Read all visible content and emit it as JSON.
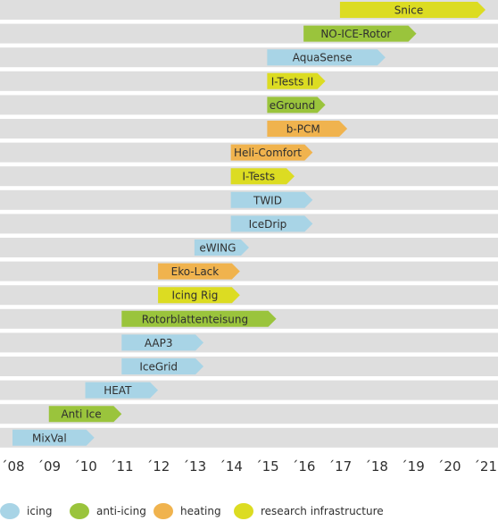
{
  "chart_data": {
    "type": "bar",
    "subtype": "gantt-timeline",
    "x_ticks": [
      "´08",
      "´09",
      "´10",
      "´11",
      "´12",
      "´13",
      "´14",
      "´15",
      "´16",
      "´17",
      "´18",
      "´19",
      "´20",
      "´21"
    ],
    "xlim": [
      2008,
      2021
    ],
    "grid": "horizontal row bands",
    "legend_position": "bottom",
    "categories_colors": {
      "icing": "#a8d4e6",
      "anti-icing": "#9ac43c",
      "heating": "#f0b34e",
      "research infrastructure": "#dcdc22"
    },
    "legend": [
      "icing",
      "anti-icing",
      "heating",
      "research infrastructure"
    ],
    "projects": [
      {
        "name": "Snice",
        "category": "research infrastructure",
        "start": 2017.0,
        "end": 2021.0
      },
      {
        "name": "NO-ICE-Rotor",
        "category": "anti-icing",
        "start": 2016.0,
        "end": 2019.1
      },
      {
        "name": "AquaSense",
        "category": "icing",
        "start": 2015.0,
        "end": 2018.25
      },
      {
        "name": "I-Tests II",
        "category": "research infrastructure",
        "start": 2015.0,
        "end": 2016.6
      },
      {
        "name": "eGround",
        "category": "anti-icing",
        "start": 2015.0,
        "end": 2016.6
      },
      {
        "name": "b-PCM",
        "category": "heating",
        "start": 2015.0,
        "end": 2017.2
      },
      {
        "name": "Heli-Comfort",
        "category": "heating",
        "start": 2014.0,
        "end": 2016.25
      },
      {
        "name": "I-Tests",
        "category": "research infrastructure",
        "start": 2014.0,
        "end": 2015.75
      },
      {
        "name": "TWID",
        "category": "icing",
        "start": 2014.0,
        "end": 2016.25
      },
      {
        "name": "IceDrip",
        "category": "icing",
        "start": 2014.0,
        "end": 2016.25
      },
      {
        "name": "eWING",
        "category": "icing",
        "start": 2013.0,
        "end": 2014.5
      },
      {
        "name": "Eko-Lack",
        "category": "heating",
        "start": 2012.0,
        "end": 2014.25
      },
      {
        "name": "Icing Rig",
        "category": "research infrastructure",
        "start": 2012.0,
        "end": 2014.25
      },
      {
        "name": "Rotorblattenteisung",
        "category": "anti-icing",
        "start": 2011.0,
        "end": 2015.25
      },
      {
        "name": "AAP3",
        "category": "icing",
        "start": 2011.0,
        "end": 2013.25
      },
      {
        "name": "IceGrid",
        "category": "icing",
        "start": 2011.0,
        "end": 2013.25
      },
      {
        "name": "HEAT",
        "category": "icing",
        "start": 2010.0,
        "end": 2012.0
      },
      {
        "name": "Anti Ice",
        "category": "anti-icing",
        "start": 2009.0,
        "end": 2011.0
      },
      {
        "name": "MixVal",
        "category": "icing",
        "start": 2008.0,
        "end": 2010.25
      }
    ]
  }
}
